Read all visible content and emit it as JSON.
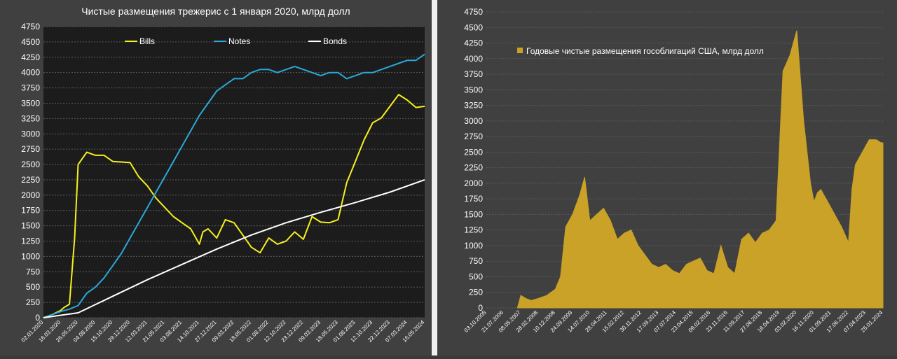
{
  "charts": [
    {
      "title": "Чистые размещения трежерис с 1 января 2020, млрд долл",
      "yticks": [
        "0",
        "250",
        "500",
        "750",
        "1000",
        "1250",
        "1500",
        "1750",
        "2000",
        "2250",
        "2500",
        "2750",
        "3000",
        "3250",
        "3500",
        "3750",
        "4000",
        "4250",
        "4500",
        "4750"
      ],
      "xticks": [
        "02.01.2020",
        "16.03.2020",
        "26.05.2020",
        "04.08.2020",
        "15.10.2020",
        "29.12.2020",
        "12.03.2021",
        "21.05.2021",
        "03.08.2021",
        "14.10.2021",
        "27.12.2021",
        "09.03.2022",
        "18.05.2022",
        "01.08.2022",
        "12.10.2022",
        "23.12.2022",
        "09.03.2023",
        "18.05.2023",
        "01.08.2023",
        "12.10.2023",
        "22.12.2023",
        "07.03.2024",
        "16.05.2024"
      ],
      "legend": [
        {
          "label": "Bills",
          "color": "#f5ef1e"
        },
        {
          "label": "Notes",
          "color": "#2aa8d8"
        },
        {
          "label": "Bonds",
          "color": "#ffffff"
        }
      ]
    },
    {
      "title": "",
      "yticks": [
        "0",
        "250",
        "500",
        "750",
        "1000",
        "1250",
        "1500",
        "1750",
        "2000",
        "2250",
        "2500",
        "2750",
        "3000",
        "3250",
        "3500",
        "3750",
        "4000",
        "4250",
        "4500",
        "4750"
      ],
      "xticks": [
        "03.10.2005",
        "21.07.2006",
        "08.05.2007",
        "28.02.2008",
        "10.12.2008",
        "24.09.2009",
        "14.07.2010",
        "28.04.2011",
        "15.02.2012",
        "30.11.2012",
        "17.09.2013",
        "07.07.2014",
        "23.04.2015",
        "09.02.2016",
        "23.11.2016",
        "11.09.2017",
        "27.06.2018",
        "16.04.2019",
        "03.02.2020",
        "16.11.2020",
        "01.09.2021",
        "17.06.2022",
        "07.04.2023",
        "25.01.2024"
      ],
      "legend": [
        {
          "label": "Годовые чистые размещения гособлигаций США, млрд долл",
          "color": "#c9a227"
        }
      ]
    }
  ],
  "chart_data": [
    {
      "type": "line",
      "title": "Чистые размещения трежерис с 1 января 2020, млрд долл",
      "xlabel": "",
      "ylabel": "",
      "ylim": [
        0,
        4750
      ],
      "grid": true,
      "legend_position": "top",
      "x_index_range": [
        0,
        22
      ],
      "series": [
        {
          "name": "Bills",
          "color": "#f5ef1e",
          "x": [
            0,
            0.5,
            1,
            1.2,
            1.5,
            1.8,
            2,
            2.5,
            3,
            3.5,
            4,
            4.5,
            5,
            5.5,
            6,
            6.5,
            7,
            7.5,
            8,
            8.5,
            9,
            9.2,
            9.5,
            10,
            10.5,
            11,
            11.5,
            12,
            12.5,
            13,
            13.5,
            14,
            14.5,
            15,
            15.5,
            16,
            16.5,
            17,
            17.5,
            18,
            18.5,
            19,
            19.5,
            20,
            20.5,
            21,
            21.5,
            22
          ],
          "y": [
            0,
            50,
            120,
            170,
            220,
            1300,
            2500,
            2700,
            2650,
            2650,
            2550,
            2540,
            2530,
            2300,
            2150,
            1950,
            1800,
            1650,
            1550,
            1450,
            1200,
            1400,
            1450,
            1300,
            1600,
            1550,
            1350,
            1150,
            1060,
            1300,
            1200,
            1250,
            1400,
            1280,
            1650,
            1560,
            1550,
            1600,
            2200,
            2550,
            2900,
            3180,
            3260,
            3450,
            3640,
            3550,
            3430,
            3450
          ]
        },
        {
          "name": "Notes",
          "color": "#2aa8d8",
          "x": [
            0,
            0.5,
            1,
            1.5,
            2,
            2.5,
            3,
            3.5,
            4,
            4.5,
            5,
            5.5,
            6,
            6.5,
            7,
            7.5,
            8,
            8.5,
            9,
            9.5,
            10,
            10.5,
            11,
            11.5,
            12,
            12.5,
            13,
            13.5,
            14,
            14.5,
            15,
            15.5,
            16,
            16.5,
            17,
            17.5,
            18,
            18.5,
            19,
            19.5,
            20,
            20.5,
            21,
            21.5,
            22
          ],
          "y": [
            0,
            50,
            100,
            140,
            200,
            400,
            500,
            650,
            850,
            1050,
            1300,
            1550,
            1800,
            2050,
            2300,
            2550,
            2800,
            3050,
            3300,
            3500,
            3700,
            3800,
            3900,
            3900,
            4000,
            4050,
            4050,
            4000,
            4050,
            4100,
            4050,
            4000,
            3950,
            4000,
            4000,
            3900,
            3950,
            4000,
            4000,
            4050,
            4100,
            4150,
            4200,
            4200,
            4300
          ]
        },
        {
          "name": "Bonds",
          "color": "#ffffff",
          "x": [
            0,
            2,
            4,
            6,
            8,
            10,
            12,
            14,
            16,
            18,
            20,
            22
          ],
          "y": [
            0,
            80,
            350,
            620,
            870,
            1120,
            1350,
            1550,
            1720,
            1880,
            2050,
            2250
          ]
        }
      ]
    },
    {
      "type": "area",
      "title": "",
      "xlabel": "",
      "ylabel": "",
      "ylim": [
        0,
        4750
      ],
      "grid": true,
      "legend_position": "top-left",
      "x_index_range": [
        0,
        23
      ],
      "series": [
        {
          "name": "Годовые чистые размещения гособлигаций США, млрд долл",
          "color": "#c9a227",
          "x": [
            1.8,
            2.0,
            2.3,
            2.6,
            3.0,
            3.5,
            4.0,
            4.3,
            4.6,
            5.0,
            5.4,
            5.7,
            6.0,
            6.4,
            6.8,
            7.2,
            7.6,
            8.0,
            8.4,
            8.8,
            9.2,
            9.6,
            10.0,
            10.4,
            10.8,
            11.2,
            11.6,
            12.0,
            12.4,
            12.8,
            13.2,
            13.6,
            14.0,
            14.4,
            14.8,
            15.2,
            15.6,
            16.0,
            16.4,
            16.8,
            17.2,
            17.6,
            18.0,
            18.4,
            18.8,
            19.0,
            19.2,
            19.4,
            19.6,
            19.8,
            20.2,
            20.6,
            21.0,
            21.2,
            21.4,
            21.8,
            22.2,
            22.6,
            22.9,
            23.0
          ],
          "y": [
            0,
            200,
            150,
            120,
            150,
            200,
            300,
            500,
            1300,
            1500,
            1800,
            2100,
            1400,
            1500,
            1600,
            1400,
            1100,
            1200,
            1250,
            1000,
            850,
            700,
            650,
            700,
            600,
            550,
            700,
            750,
            800,
            600,
            550,
            1000,
            650,
            550,
            1100,
            1200,
            1050,
            1200,
            1250,
            1400,
            3800,
            4050,
            4450,
            3000,
            2000,
            1700,
            1850,
            1900,
            1800,
            1700,
            1500,
            1300,
            1050,
            1900,
            2300,
            2500,
            2700,
            2700,
            2650,
            2650
          ]
        }
      ]
    }
  ]
}
